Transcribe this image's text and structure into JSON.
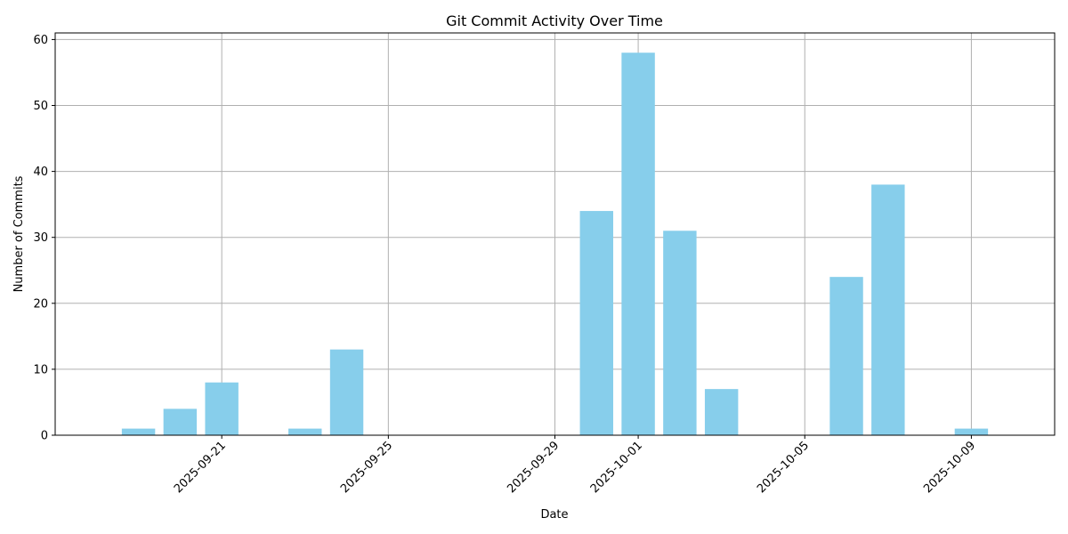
{
  "chart_data": {
    "type": "bar",
    "title": "Git Commit Activity Over Time",
    "xlabel": "Date",
    "ylabel": "Number of Commits",
    "x_range": [
      "2025-09-17",
      "2025-10-11"
    ],
    "ylim": [
      0,
      61
    ],
    "y_ticks": [
      0,
      10,
      20,
      30,
      40,
      50,
      60
    ],
    "x_ticks": [
      "2025-09-21",
      "2025-09-25",
      "2025-09-29",
      "2025-10-01",
      "2025-10-05",
      "2025-10-09"
    ],
    "grid": true,
    "bar_color": "#87ceeb",
    "bars": [
      {
        "date": "2025-09-19",
        "value": 1
      },
      {
        "date": "2025-09-20",
        "value": 4
      },
      {
        "date": "2025-09-21",
        "value": 8
      },
      {
        "date": "2025-09-23",
        "value": 1
      },
      {
        "date": "2025-09-24",
        "value": 13
      },
      {
        "date": "2025-09-30",
        "value": 34
      },
      {
        "date": "2025-10-01",
        "value": 58
      },
      {
        "date": "2025-10-02",
        "value": 31
      },
      {
        "date": "2025-10-03",
        "value": 7
      },
      {
        "date": "2025-10-06",
        "value": 24
      },
      {
        "date": "2025-10-07",
        "value": 38
      },
      {
        "date": "2025-10-09",
        "value": 1
      }
    ]
  }
}
